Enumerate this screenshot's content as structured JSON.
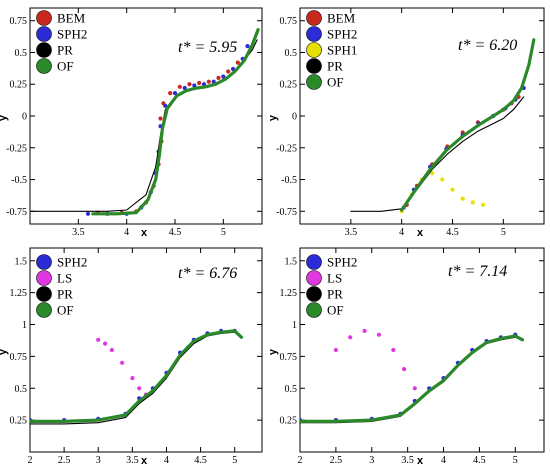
{
  "chart_data": [
    {
      "type": "line",
      "xlabel": "x",
      "ylabel": "y",
      "xlim": [
        3.0,
        5.4
      ],
      "ylim": [
        -0.85,
        0.85
      ],
      "xticks": [
        3.5,
        4,
        4.5,
        5
      ],
      "xtick_labels": [
        "3.5",
        "4",
        "4.5",
        "5"
      ],
      "yticks": [
        -0.75,
        -0.5,
        -0.25,
        0,
        0.25,
        0.5,
        0.75
      ],
      "ytick_labels": [
        "-0.75",
        "-0.5",
        "-0.25",
        "0",
        "0.25",
        "0.5",
        "0.75"
      ],
      "annotation": "t* = 5.95",
      "series": [
        {
          "name": "BEM",
          "style": "dots",
          "color": "#c8281e",
          "x": [
            3.7,
            3.95,
            4.1,
            4.2,
            4.28,
            4.33,
            4.36,
            4.35,
            4.38,
            4.45,
            4.55,
            4.65,
            4.75,
            4.85,
            4.95,
            5.05,
            5.15
          ],
          "y": [
            -0.76,
            -0.76,
            -0.75,
            -0.68,
            -0.55,
            -0.38,
            -0.2,
            -0.02,
            0.1,
            0.18,
            0.23,
            0.25,
            0.26,
            0.27,
            0.3,
            0.35,
            0.42
          ]
        },
        {
          "name": "SPH2",
          "style": "dots",
          "color": "#2b2bd8",
          "x": [
            3.6,
            3.8,
            4.0,
            4.15,
            4.25,
            4.3,
            4.33,
            4.35,
            4.4,
            4.5,
            4.6,
            4.7,
            4.8,
            4.9,
            5.0,
            5.1,
            5.2,
            5.25
          ],
          "y": [
            -0.77,
            -0.77,
            -0.77,
            -0.72,
            -0.6,
            -0.45,
            -0.28,
            -0.08,
            0.08,
            0.18,
            0.22,
            0.24,
            0.25,
            0.27,
            0.31,
            0.37,
            0.45,
            0.55
          ]
        },
        {
          "name": "PR",
          "style": "line",
          "color": "#000000",
          "x": [
            3.0,
            3.4,
            3.8,
            4.0,
            4.2,
            4.3,
            4.35,
            4.4,
            4.5,
            4.6,
            4.7,
            4.8,
            4.9,
            5.0,
            5.1,
            5.2,
            5.3,
            5.35
          ],
          "y": [
            -0.75,
            -0.75,
            -0.75,
            -0.74,
            -0.62,
            -0.4,
            -0.15,
            0.05,
            0.15,
            0.19,
            0.21,
            0.22,
            0.24,
            0.28,
            0.34,
            0.42,
            0.52,
            0.6
          ]
        },
        {
          "name": "OF",
          "style": "line",
          "color": "#2a8a2a",
          "x": [
            3.65,
            3.9,
            4.1,
            4.22,
            4.3,
            4.34,
            4.37,
            4.42,
            4.52,
            4.62,
            4.72,
            4.82,
            4.92,
            5.02,
            5.12,
            5.22,
            5.3,
            5.36
          ],
          "y": [
            -0.77,
            -0.77,
            -0.76,
            -0.66,
            -0.5,
            -0.3,
            -0.1,
            0.06,
            0.16,
            0.2,
            0.22,
            0.23,
            0.25,
            0.29,
            0.35,
            0.44,
            0.56,
            0.68
          ]
        }
      ]
    },
    {
      "type": "line",
      "xlabel": "x",
      "ylabel": "y",
      "xlim": [
        3.0,
        5.4
      ],
      "ylim": [
        -0.85,
        0.85
      ],
      "xticks": [
        3.5,
        4,
        4.5,
        5
      ],
      "xtick_labels": [
        "3.5",
        "4",
        "4.5",
        "5"
      ],
      "yticks": [
        -0.75,
        -0.5,
        -0.25,
        0,
        0.25,
        0.5,
        0.75
      ],
      "ytick_labels": [
        "-0.75",
        "-0.5",
        "-0.25",
        "0",
        "0.25",
        "0.5",
        "0.75"
      ],
      "annotation": "t* = 6.20",
      "series": [
        {
          "name": "BEM",
          "style": "dots",
          "color": "#c8281e",
          "x": [
            4.05,
            4.15,
            4.3,
            4.45,
            4.6,
            4.75,
            4.9,
            5.0,
            5.08,
            5.15
          ],
          "y": [
            -0.7,
            -0.55,
            -0.38,
            -0.24,
            -0.13,
            -0.05,
            0.0,
            0.05,
            0.1,
            0.15
          ]
        },
        {
          "name": "SPH2",
          "style": "dots",
          "color": "#2b2bd8",
          "x": [
            4.02,
            4.12,
            4.28,
            4.44,
            4.6,
            4.76,
            4.9,
            5.02,
            5.12,
            5.2
          ],
          "y": [
            -0.72,
            -0.58,
            -0.4,
            -0.26,
            -0.15,
            -0.06,
            0.0,
            0.06,
            0.13,
            0.22
          ]
        },
        {
          "name": "SPH1",
          "style": "dots",
          "color": "#e8e000",
          "x": [
            4.0,
            4.1,
            4.2,
            4.3,
            4.4,
            4.5,
            4.6,
            4.7,
            4.8
          ],
          "y": [
            -0.75,
            -0.62,
            -0.5,
            -0.45,
            -0.5,
            -0.58,
            -0.65,
            -0.68,
            -0.7
          ]
        },
        {
          "name": "PR",
          "style": "line",
          "color": "#000000",
          "x": [
            3.5,
            3.8,
            4.0,
            4.15,
            4.3,
            4.45,
            4.6,
            4.75,
            4.9,
            5.0,
            5.1,
            5.2
          ],
          "y": [
            -0.75,
            -0.75,
            -0.73,
            -0.58,
            -0.42,
            -0.3,
            -0.2,
            -0.12,
            -0.06,
            -0.02,
            0.05,
            0.15
          ]
        },
        {
          "name": "OF",
          "style": "line",
          "color": "#2a8a2a",
          "x": [
            4.0,
            4.12,
            4.28,
            4.44,
            4.6,
            4.76,
            4.9,
            5.0,
            5.1,
            5.18,
            5.25,
            5.3
          ],
          "y": [
            -0.74,
            -0.6,
            -0.42,
            -0.27,
            -0.16,
            -0.07,
            0.0,
            0.05,
            0.12,
            0.22,
            0.4,
            0.6
          ]
        }
      ]
    },
    {
      "type": "line",
      "xlabel": "x",
      "ylabel": "y",
      "xlim": [
        2.0,
        5.4
      ],
      "ylim": [
        0.0,
        1.6
      ],
      "xticks": [
        2,
        2.5,
        3,
        3.5,
        4,
        4.5,
        5
      ],
      "xtick_labels": [
        "2",
        "2.5",
        "3",
        "3.5",
        "4",
        "4.5",
        "5"
      ],
      "yticks": [
        0.25,
        0.5,
        0.75,
        1,
        1.25,
        1.5
      ],
      "ytick_labels": [
        "0.25",
        "0.5",
        "0.75",
        "1",
        "1.25",
        "1.5"
      ],
      "annotation": "t* = 6.76",
      "series": [
        {
          "name": "SPH2",
          "style": "dots",
          "color": "#2b2bd8",
          "x": [
            2.0,
            2.5,
            3.0,
            3.4,
            3.6,
            3.8,
            4.0,
            4.2,
            4.4,
            4.6,
            4.8,
            5.0
          ],
          "y": [
            0.25,
            0.25,
            0.26,
            0.3,
            0.42,
            0.5,
            0.62,
            0.78,
            0.88,
            0.93,
            0.95,
            0.95
          ]
        },
        {
          "name": "LS",
          "style": "dots",
          "color": "#e038e0",
          "x": [
            3.0,
            3.1,
            3.2,
            3.35,
            3.5,
            3.6,
            3.7
          ],
          "y": [
            0.88,
            0.85,
            0.8,
            0.7,
            0.58,
            0.5,
            0.45
          ]
        },
        {
          "name": "PR",
          "style": "line",
          "color": "#000000",
          "x": [
            2.0,
            2.5,
            3.0,
            3.4,
            3.6,
            3.8,
            4.0,
            4.2,
            4.4,
            4.6,
            4.8,
            5.0
          ],
          "y": [
            0.22,
            0.22,
            0.23,
            0.27,
            0.38,
            0.46,
            0.58,
            0.74,
            0.85,
            0.91,
            0.93,
            0.94
          ]
        },
        {
          "name": "OF",
          "style": "line",
          "color": "#2a8a2a",
          "x": [
            2.0,
            2.5,
            3.0,
            3.4,
            3.6,
            3.8,
            4.0,
            4.2,
            4.4,
            4.6,
            4.8,
            5.0,
            5.1
          ],
          "y": [
            0.24,
            0.24,
            0.25,
            0.29,
            0.4,
            0.48,
            0.6,
            0.76,
            0.87,
            0.92,
            0.94,
            0.95,
            0.9
          ]
        }
      ]
    },
    {
      "type": "line",
      "xlabel": "x",
      "ylabel": "y",
      "xlim": [
        2.0,
        5.4
      ],
      "ylim": [
        0.0,
        1.6
      ],
      "xticks": [
        2,
        2.5,
        3,
        3.5,
        4,
        4.5,
        5
      ],
      "xtick_labels": [
        "2",
        "2.5",
        "3",
        "3.5",
        "4",
        "4.5",
        "5"
      ],
      "yticks": [
        0.25,
        0.5,
        0.75,
        1,
        1.25,
        1.5
      ],
      "ytick_labels": [
        "0.25",
        "0.5",
        "0.75",
        "1",
        "1.25",
        "1.5"
      ],
      "annotation": "t* = 7.14",
      "series": [
        {
          "name": "SPH2",
          "style": "dots",
          "color": "#2b2bd8",
          "x": [
            2.0,
            2.5,
            3.0,
            3.4,
            3.6,
            3.8,
            4.0,
            4.2,
            4.4,
            4.6,
            4.8,
            5.0
          ],
          "y": [
            0.25,
            0.25,
            0.26,
            0.3,
            0.4,
            0.5,
            0.58,
            0.7,
            0.8,
            0.87,
            0.9,
            0.92
          ]
        },
        {
          "name": "LS",
          "style": "dots",
          "color": "#e038e0",
          "x": [
            2.5,
            2.7,
            2.9,
            3.1,
            3.3,
            3.45,
            3.6
          ],
          "y": [
            0.8,
            0.9,
            0.95,
            0.92,
            0.8,
            0.65,
            0.5
          ]
        },
        {
          "name": "PR",
          "style": "line",
          "color": "#000000",
          "x": [
            2.0,
            2.5,
            3.0,
            3.4,
            3.6,
            3.8,
            4.0,
            4.2,
            4.4,
            4.6,
            4.8,
            5.0
          ],
          "y": [
            0.23,
            0.23,
            0.24,
            0.28,
            0.37,
            0.47,
            0.55,
            0.67,
            0.77,
            0.85,
            0.88,
            0.9
          ]
        },
        {
          "name": "OF",
          "style": "line",
          "color": "#2a8a2a",
          "x": [
            2.0,
            2.5,
            3.0,
            3.4,
            3.6,
            3.8,
            4.0,
            4.2,
            4.4,
            4.6,
            4.8,
            5.0,
            5.1
          ],
          "y": [
            0.24,
            0.24,
            0.25,
            0.29,
            0.38,
            0.48,
            0.56,
            0.68,
            0.78,
            0.86,
            0.89,
            0.91,
            0.88
          ]
        }
      ]
    }
  ]
}
